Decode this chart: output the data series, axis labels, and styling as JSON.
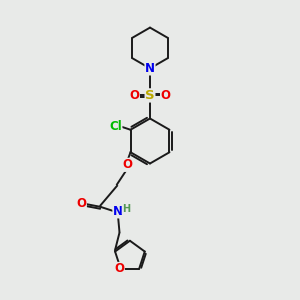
{
  "bg_color": "#e8eae8",
  "bond_color": "#1a1a1a",
  "atom_colors": {
    "N": "#0000ee",
    "O": "#ee0000",
    "S": "#bbaa00",
    "Cl": "#00bb00",
    "H": "#559955"
  },
  "lw": 1.4,
  "fs": 8.5
}
